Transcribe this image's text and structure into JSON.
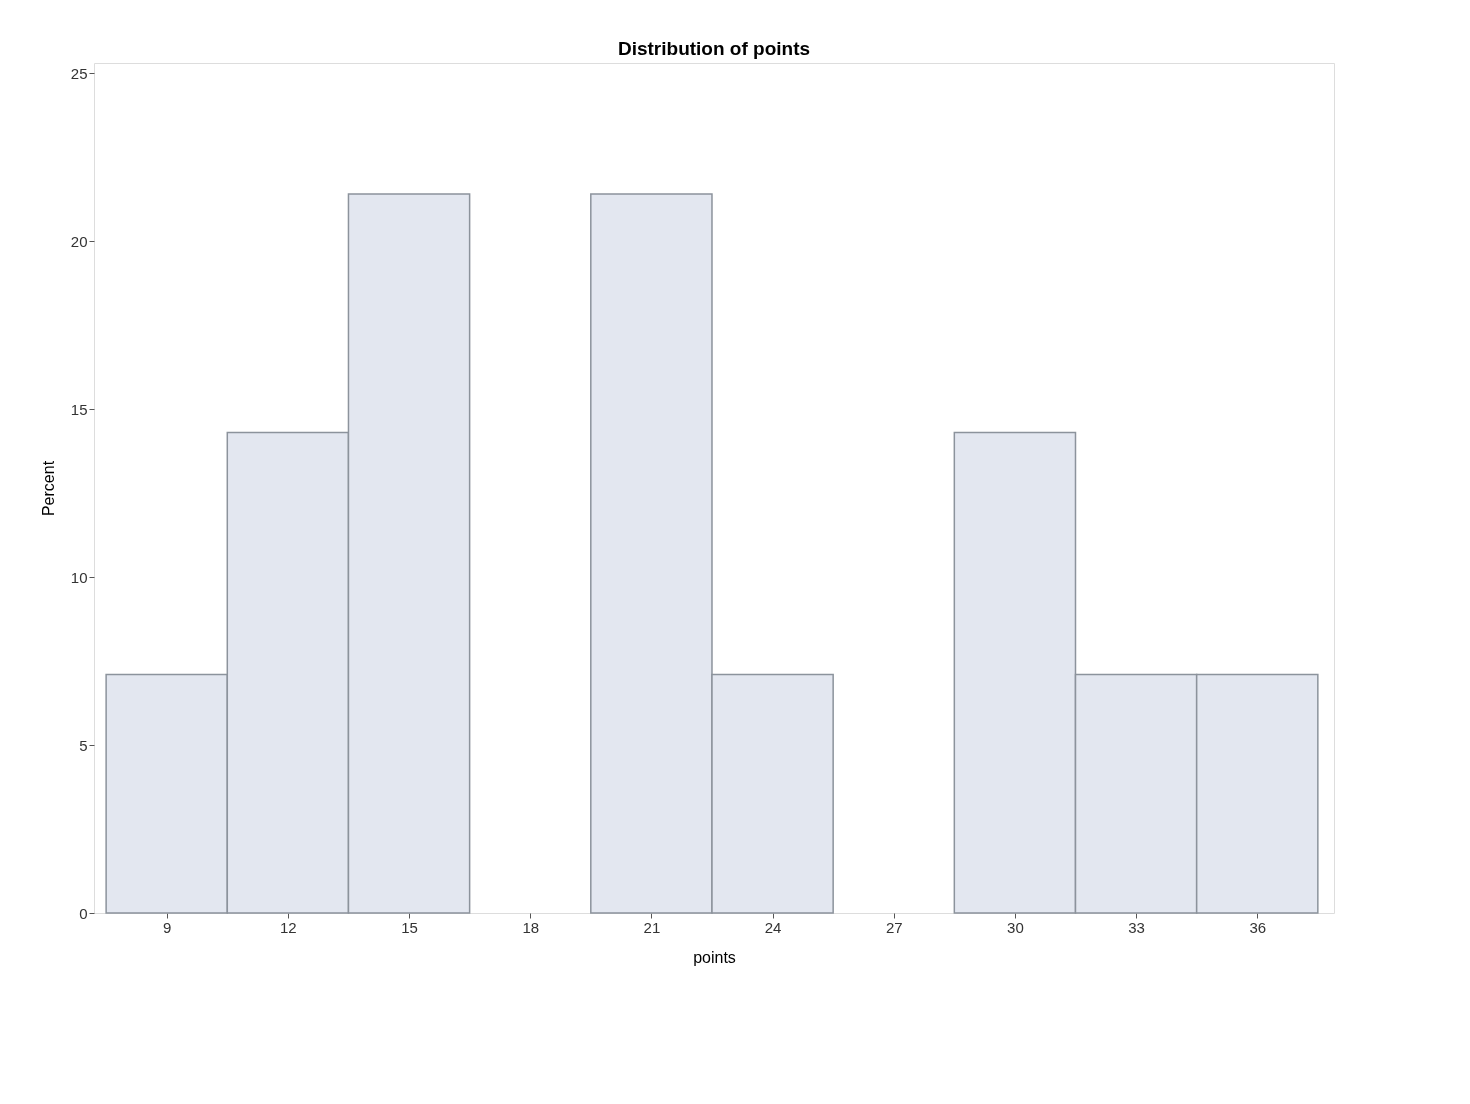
{
  "chart_data": {
    "type": "histogram",
    "title": "Distribution of points",
    "xlabel": "points",
    "ylabel": "Percent",
    "bins": [
      7.5,
      10.5,
      13.5,
      16.5,
      19.5,
      22.5,
      25.5,
      28.5,
      31.5,
      34.5,
      37.5
    ],
    "values": [
      7.1,
      14.3,
      21.4,
      0,
      21.4,
      7.1,
      0,
      14.3,
      7.1,
      7.1
    ],
    "color": "#e3e7f0",
    "xlim": [
      7.2,
      37.9
    ],
    "xticks": [
      9,
      12,
      15,
      18,
      21,
      24,
      27,
      30,
      33,
      36
    ],
    "ylim": [
      0,
      25.3
    ],
    "yticks": [
      0,
      5,
      10,
      15,
      20,
      25
    ],
    "grid": false
  }
}
